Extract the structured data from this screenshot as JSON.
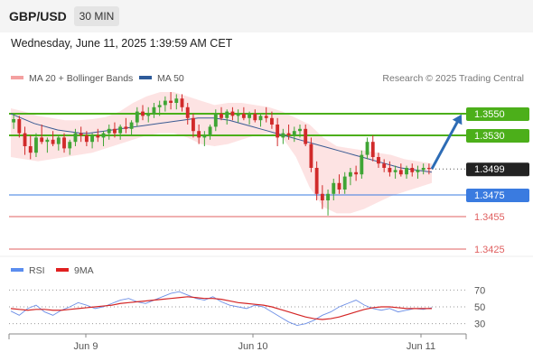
{
  "header": {
    "pair": "GBP/USD",
    "timeframe": "30 MIN",
    "datetime": "Wednesday, June 11, 2025 1:39:59 AM CET"
  },
  "legend": {
    "items": [
      {
        "label": "MA 20 + Bollinger Bands",
        "color": "#f4a0a0"
      },
      {
        "label": "MA 50",
        "color": "#2e5b9a"
      }
    ],
    "credit": "Research © 2025 Trading Central"
  },
  "rsi_legend": {
    "items": [
      {
        "label": "RSI",
        "color": "#5b8def"
      },
      {
        "label": "9MA",
        "color": "#e02020"
      }
    ]
  },
  "colors": {
    "resistance": "#4caf1a",
    "pivot": "#3a7be0",
    "support": "#e06060",
    "price": "#222222",
    "arrow": "#2d6cb5"
  },
  "chart_data": [
    {
      "type": "line",
      "subtype": "candlestick",
      "x_ticks": [
        "Jun 9",
        "Jun 10",
        "Jun 11"
      ],
      "ylim": [
        1.3415,
        1.3575
      ],
      "levels": [
        {
          "value": 1.355,
          "label": "1.3550",
          "kind": "resistance"
        },
        {
          "value": 1.353,
          "label": "1.3530",
          "kind": "resistance"
        },
        {
          "value": 1.3499,
          "label": "1.3499",
          "kind": "last-price"
        },
        {
          "value": 1.3475,
          "label": "1.3475",
          "kind": "pivot"
        },
        {
          "value": 1.3455,
          "label": "1.3455",
          "kind": "support"
        },
        {
          "value": 1.3425,
          "label": "1.3425",
          "kind": "support"
        }
      ],
      "forecast_arrow": {
        "from": 1.3499,
        "to": 1.3545,
        "direction": "up"
      },
      "candles": [
        [
          1.3542,
          1.355,
          1.3536,
          1.3545
        ],
        [
          1.3545,
          1.3548,
          1.3528,
          1.3532
        ],
        [
          1.3532,
          1.3538,
          1.3512,
          1.352
        ],
        [
          1.352,
          1.353,
          1.3508,
          1.3514
        ],
        [
          1.3514,
          1.3532,
          1.351,
          1.3528
        ],
        [
          1.3528,
          1.354,
          1.3522,
          1.3524
        ],
        [
          1.3524,
          1.3528,
          1.3514,
          1.3526
        ],
        [
          1.3526,
          1.3534,
          1.352,
          1.3522
        ],
        [
          1.3522,
          1.353,
          1.3516,
          1.3528
        ],
        [
          1.3528,
          1.3532,
          1.3514,
          1.3518
        ],
        [
          1.3518,
          1.3526,
          1.3512,
          1.3524
        ],
        [
          1.3524,
          1.3536,
          1.352,
          1.3532
        ],
        [
          1.3532,
          1.3538,
          1.3524,
          1.353
        ],
        [
          1.353,
          1.3534,
          1.352,
          1.3524
        ],
        [
          1.3524,
          1.3532,
          1.3518,
          1.353
        ],
        [
          1.353,
          1.3536,
          1.3524,
          1.3528
        ],
        [
          1.3528,
          1.3534,
          1.352,
          1.3532
        ],
        [
          1.3532,
          1.354,
          1.3526,
          1.3536
        ],
        [
          1.3536,
          1.3542,
          1.3528,
          1.3532
        ],
        [
          1.3532,
          1.354,
          1.3526,
          1.3538
        ],
        [
          1.3538,
          1.3546,
          1.3532,
          1.3536
        ],
        [
          1.3536,
          1.3544,
          1.353,
          1.3542
        ],
        [
          1.3542,
          1.3556,
          1.3538,
          1.3552
        ],
        [
          1.3552,
          1.3558,
          1.3544,
          1.3548
        ],
        [
          1.3548,
          1.3556,
          1.3542,
          1.355
        ],
        [
          1.355,
          1.356,
          1.3546,
          1.3556
        ],
        [
          1.3556,
          1.3562,
          1.3548,
          1.3558
        ],
        [
          1.3558,
          1.3566,
          1.3552,
          1.3562
        ],
        [
          1.3562,
          1.357,
          1.3554,
          1.356
        ],
        [
          1.356,
          1.3568,
          1.3554,
          1.3564
        ],
        [
          1.3564,
          1.3568,
          1.3552,
          1.3556
        ],
        [
          1.3556,
          1.356,
          1.354,
          1.3546
        ],
        [
          1.3546,
          1.355,
          1.3528,
          1.3534
        ],
        [
          1.3534,
          1.354,
          1.3522,
          1.3528
        ],
        [
          1.3528,
          1.3534,
          1.352,
          1.353
        ],
        [
          1.353,
          1.354,
          1.3526,
          1.3538
        ],
        [
          1.3538,
          1.3554,
          1.3534,
          1.355
        ],
        [
          1.355,
          1.3556,
          1.3544,
          1.3546
        ],
        [
          1.3546,
          1.3554,
          1.354,
          1.3552
        ],
        [
          1.3552,
          1.3556,
          1.3544,
          1.3548
        ],
        [
          1.3548,
          1.3554,
          1.3542,
          1.355
        ],
        [
          1.355,
          1.3556,
          1.3544,
          1.3546
        ],
        [
          1.3546,
          1.3552,
          1.354,
          1.355
        ],
        [
          1.355,
          1.3554,
          1.3542,
          1.3544
        ],
        [
          1.3544,
          1.355,
          1.3538,
          1.3548
        ],
        [
          1.3548,
          1.3556,
          1.3542,
          1.3546
        ],
        [
          1.3546,
          1.3552,
          1.3536,
          1.354
        ],
        [
          1.354,
          1.3546,
          1.352,
          1.3528
        ],
        [
          1.3528,
          1.3536,
          1.3522,
          1.3532
        ],
        [
          1.3532,
          1.354,
          1.3526,
          1.353
        ],
        [
          1.353,
          1.3538,
          1.3524,
          1.3534
        ],
        [
          1.3534,
          1.354,
          1.3528,
          1.3536
        ],
        [
          1.3536,
          1.354,
          1.352,
          1.3522
        ],
        [
          1.3522,
          1.3528,
          1.3496,
          1.35
        ],
        [
          1.35,
          1.3506,
          1.347,
          1.3476
        ],
        [
          1.3476,
          1.3484,
          1.3462,
          1.347
        ],
        [
          1.347,
          1.348,
          1.3456,
          1.3476
        ],
        [
          1.3476,
          1.349,
          1.347,
          1.3486
        ],
        [
          1.3486,
          1.3494,
          1.3476,
          1.348
        ],
        [
          1.348,
          1.3496,
          1.3476,
          1.3492
        ],
        [
          1.3492,
          1.35,
          1.3484,
          1.3496
        ],
        [
          1.3496,
          1.3502,
          1.3488,
          1.3494
        ],
        [
          1.3494,
          1.3516,
          1.349,
          1.3512
        ],
        [
          1.3512,
          1.3528,
          1.3508,
          1.3524
        ],
        [
          1.3524,
          1.353,
          1.3506,
          1.351
        ],
        [
          1.351,
          1.3514,
          1.35,
          1.3504
        ],
        [
          1.3504,
          1.3508,
          1.3496,
          1.35
        ],
        [
          1.35,
          1.3506,
          1.3492,
          1.3496
        ],
        [
          1.3496,
          1.3502,
          1.349,
          1.3498
        ],
        [
          1.3498,
          1.3504,
          1.3492,
          1.3494
        ],
        [
          1.3494,
          1.3502,
          1.349,
          1.35
        ],
        [
          1.35,
          1.3504,
          1.3492,
          1.3496
        ],
        [
          1.3496,
          1.3502,
          1.349,
          1.3498
        ],
        [
          1.3498,
          1.3504,
          1.3494,
          1.35
        ],
        [
          1.35,
          1.3504,
          1.3494,
          1.3499
        ]
      ],
      "ma50": [
        1.355,
        1.3547,
        1.3544,
        1.3541,
        1.3539,
        1.3537,
        1.3535,
        1.3534,
        1.3533,
        1.3532,
        1.3532,
        1.3533,
        1.3534,
        1.3535,
        1.3536,
        1.3537,
        1.3538,
        1.3539,
        1.354,
        1.3541,
        1.3542,
        1.3543,
        1.3544,
        1.3545,
        1.3546,
        1.3546,
        1.3546,
        1.3545,
        1.3544,
        1.3542,
        1.354,
        1.3538,
        1.3536,
        1.3534,
        1.3532,
        1.353,
        1.3528,
        1.3526,
        1.3524,
        1.3522,
        1.352,
        1.3518,
        1.3516,
        1.3514,
        1.3512,
        1.351,
        1.3508,
        1.3506,
        1.3504,
        1.3502,
        1.35,
        1.3499,
        1.3498,
        1.3497,
        1.3496
      ],
      "bollinger": {
        "upper": [
          1.3555,
          1.3552,
          1.3548,
          1.3546,
          1.3544,
          1.3544,
          1.3545,
          1.3547,
          1.3552,
          1.356,
          1.3566,
          1.357,
          1.357,
          1.3566,
          1.3562,
          1.3558,
          1.356,
          1.356,
          1.3558,
          1.3556,
          1.3552,
          1.3546,
          1.354,
          1.3528,
          1.352,
          1.3518,
          1.3516,
          1.3514,
          1.3512,
          1.3508,
          1.3506,
          1.3504
        ],
        "lower": [
          1.351,
          1.3508,
          1.3506,
          1.3508,
          1.351,
          1.3512,
          1.3514,
          1.3518,
          1.3522,
          1.3526,
          1.353,
          1.3532,
          1.3532,
          1.3528,
          1.3522,
          1.352,
          1.3522,
          1.3526,
          1.353,
          1.3532,
          1.3528,
          1.351,
          1.3482,
          1.3464,
          1.3458,
          1.3458,
          1.3462,
          1.3468,
          1.3474,
          1.3478,
          1.3482,
          1.3486
        ]
      }
    },
    {
      "type": "line",
      "title": "RSI",
      "ylim": [
        20,
        80
      ],
      "y_ticks": [
        "70",
        "50",
        "30"
      ],
      "y_tick_values": [
        70,
        50,
        30
      ],
      "series": [
        {
          "name": "RSI",
          "values": [
            45,
            40,
            48,
            52,
            44,
            40,
            46,
            50,
            55,
            52,
            48,
            50,
            54,
            58,
            60,
            56,
            54,
            58,
            62,
            66,
            68,
            64,
            60,
            58,
            62,
            56,
            52,
            50,
            48,
            52,
            50,
            44,
            38,
            32,
            28,
            30,
            34,
            40,
            44,
            50,
            54,
            58,
            52,
            48,
            46,
            48,
            44,
            46,
            48,
            47,
            49
          ]
        },
        {
          "name": "9MA",
          "values": [
            48,
            47,
            46,
            47,
            47,
            46,
            46,
            47,
            48,
            49,
            50,
            51,
            52,
            54,
            55,
            56,
            57,
            58,
            59,
            60,
            61,
            62,
            61,
            60,
            60,
            59,
            57,
            55,
            54,
            53,
            52,
            50,
            47,
            44,
            41,
            38,
            36,
            35,
            36,
            38,
            41,
            44,
            47,
            49,
            50,
            50,
            49,
            48,
            48,
            48,
            48
          ]
        }
      ]
    }
  ]
}
